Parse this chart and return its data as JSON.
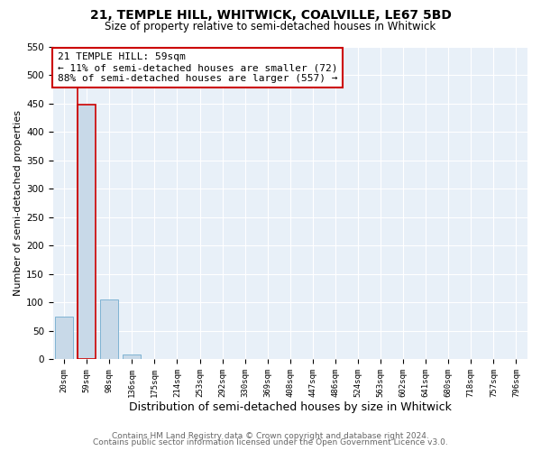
{
  "title": "21, TEMPLE HILL, WHITWICK, COALVILLE, LE67 5BD",
  "subtitle": "Size of property relative to semi-detached houses in Whitwick",
  "xlabel": "Distribution of semi-detached houses by size in Whitwick",
  "ylabel": "Number of semi-detached properties",
  "bin_labels": [
    "20sqm",
    "59sqm",
    "98sqm",
    "136sqm",
    "175sqm",
    "214sqm",
    "253sqm",
    "292sqm",
    "330sqm",
    "369sqm",
    "408sqm",
    "447sqm",
    "486sqm",
    "524sqm",
    "563sqm",
    "602sqm",
    "641sqm",
    "680sqm",
    "718sqm",
    "757sqm",
    "796sqm"
  ],
  "bar_values": [
    75,
    447,
    105,
    8,
    1,
    0,
    0,
    0,
    0,
    0,
    0,
    0,
    0,
    0,
    0,
    0,
    0,
    0,
    0,
    0,
    1
  ],
  "bar_color": "#c8d9e8",
  "bar_edge_color": "#7fb3d3",
  "highlight_bar_index": 1,
  "highlight_edge_color": "#cc0000",
  "annotation_box_edge_color": "#cc0000",
  "annotation_title": "21 TEMPLE HILL: 59sqm",
  "annotation_line1": "← 11% of semi-detached houses are smaller (72)",
  "annotation_line2": "88% of semi-detached houses are larger (557) →",
  "ylim": [
    0,
    550
  ],
  "yticks": [
    0,
    50,
    100,
    150,
    200,
    250,
    300,
    350,
    400,
    450,
    500,
    550
  ],
  "plot_bg_color": "#e8f0f8",
  "footer_line1": "Contains HM Land Registry data © Crown copyright and database right 2024.",
  "footer_line2": "Contains public sector information licensed under the Open Government Licence v3.0.",
  "title_fontsize": 10,
  "subtitle_fontsize": 8.5,
  "ylabel_fontsize": 8,
  "xlabel_fontsize": 9,
  "annotation_fontsize": 8,
  "footer_fontsize": 6.5
}
